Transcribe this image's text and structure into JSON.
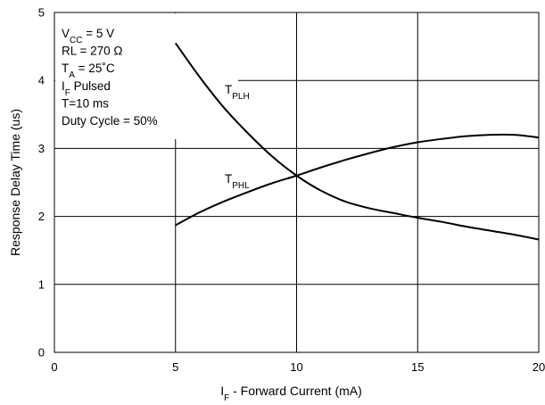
{
  "chart_data": {
    "type": "line",
    "xlabel": {
      "main": "I",
      "sub": "F",
      "rest": " - Forward Current (mA)"
    },
    "ylabel": "Response Delay Time (us)",
    "xlim": [
      0,
      20
    ],
    "ylim": [
      0,
      5
    ],
    "x_ticks": [
      0,
      5,
      10,
      15,
      20
    ],
    "y_ticks": [
      0,
      1,
      2,
      3,
      4,
      5
    ],
    "grid": true,
    "conditions": [
      {
        "main": "V",
        "sub": "CC",
        "rest": " = 5 V"
      },
      {
        "main": "RL = 270 Ω",
        "sub": "",
        "rest": ""
      },
      {
        "main": "T",
        "sub": "A",
        "rest": " = 25˚C"
      },
      {
        "main": "I",
        "sub": "F",
        "rest": " Pulsed"
      },
      {
        "main": "T=10 ms",
        "sub": "",
        "rest": ""
      },
      {
        "main": "Duty Cycle = 50%",
        "sub": "",
        "rest": ""
      }
    ],
    "series": [
      {
        "name": {
          "main": "T",
          "sub": "PLH"
        },
        "x": [
          5,
          6,
          7,
          8,
          9,
          10,
          11,
          12,
          13,
          14,
          15,
          16,
          17,
          18,
          19,
          20
        ],
        "values": [
          4.55,
          4.05,
          3.6,
          3.22,
          2.88,
          2.6,
          2.38,
          2.22,
          2.12,
          2.05,
          1.98,
          1.92,
          1.85,
          1.79,
          1.73,
          1.66
        ]
      },
      {
        "name": {
          "main": "T",
          "sub": "PHL"
        },
        "x": [
          5,
          6,
          7,
          8,
          9,
          10,
          11,
          12,
          13,
          14,
          15,
          16,
          17,
          18,
          19,
          20
        ],
        "values": [
          1.87,
          2.06,
          2.22,
          2.36,
          2.49,
          2.6,
          2.72,
          2.83,
          2.93,
          3.02,
          3.09,
          3.14,
          3.18,
          3.2,
          3.2,
          3.16
        ]
      }
    ]
  }
}
